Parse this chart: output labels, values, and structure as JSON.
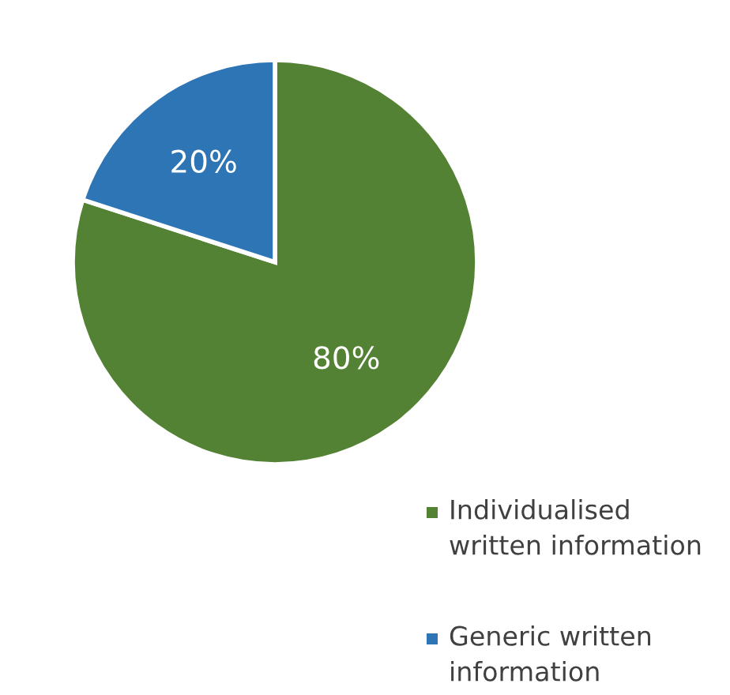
{
  "chart_data": {
    "type": "pie",
    "categories": [
      "Individualised written information",
      "Generic written information"
    ],
    "values": [
      80,
      20
    ],
    "colors": [
      "#548235",
      "#2e75b6"
    ],
    "value_labels": [
      "80%",
      "20%"
    ],
    "legend": "bottom right"
  }
}
